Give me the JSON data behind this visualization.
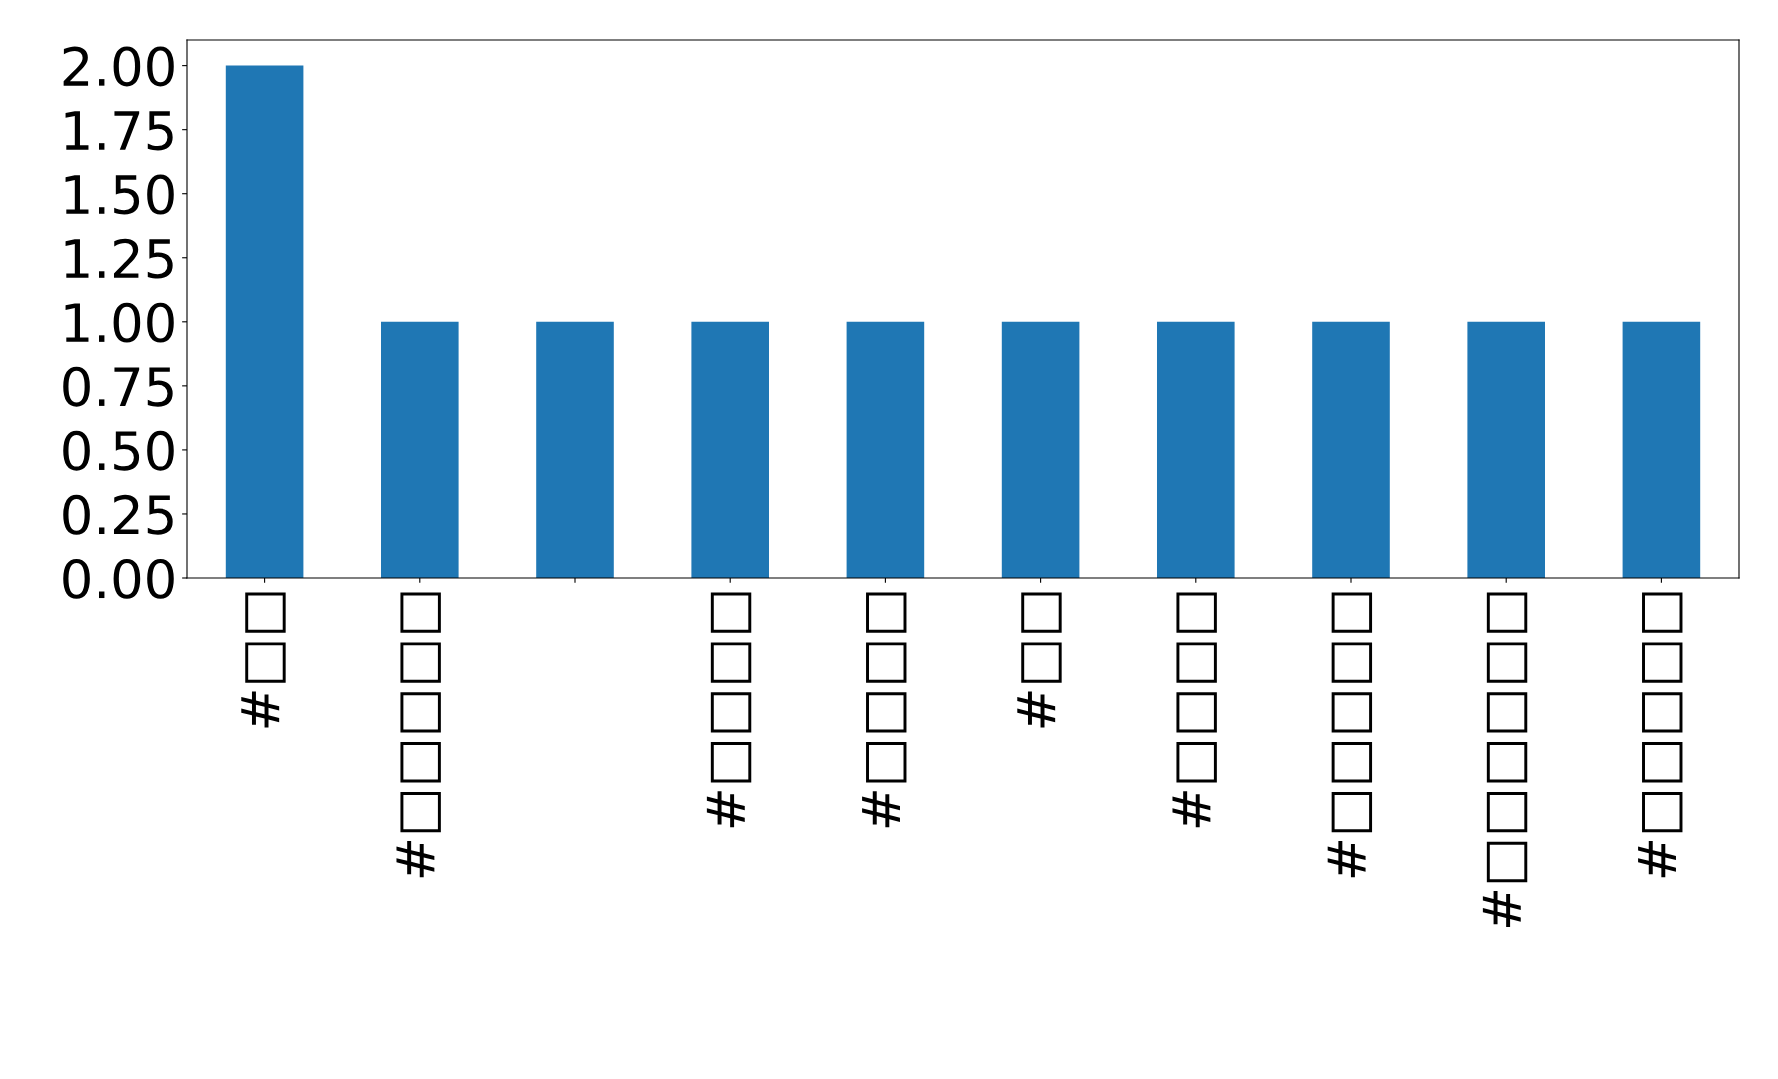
{
  "chart_data": {
    "type": "bar",
    "categories": [
      "#□□",
      "#□□□□□",
      null,
      "#□□□□",
      "#□□□□",
      "#□□",
      "#□□□□",
      "#□□□□□",
      "#□□□□□□",
      "#□□□□□"
    ],
    "values": [
      2,
      1,
      1,
      1,
      1,
      1,
      1,
      1,
      1,
      1
    ],
    "color": "#1f77b4",
    "ylim": [
      0,
      2.1
    ],
    "yticks": [
      {
        "value": 0,
        "label": "0.00"
      },
      {
        "value": 0.25,
        "label": "0.25"
      },
      {
        "value": 0.5,
        "label": "0.50"
      },
      {
        "value": 0.75,
        "label": "0.75"
      },
      {
        "value": 1,
        "label": "1.00"
      },
      {
        "value": 1.25,
        "label": "1.25"
      },
      {
        "value": 1.5,
        "label": "1.50"
      },
      {
        "value": 1.75,
        "label": "1.75"
      },
      {
        "value": 2,
        "label": "2.00"
      }
    ],
    "grid": false
  }
}
